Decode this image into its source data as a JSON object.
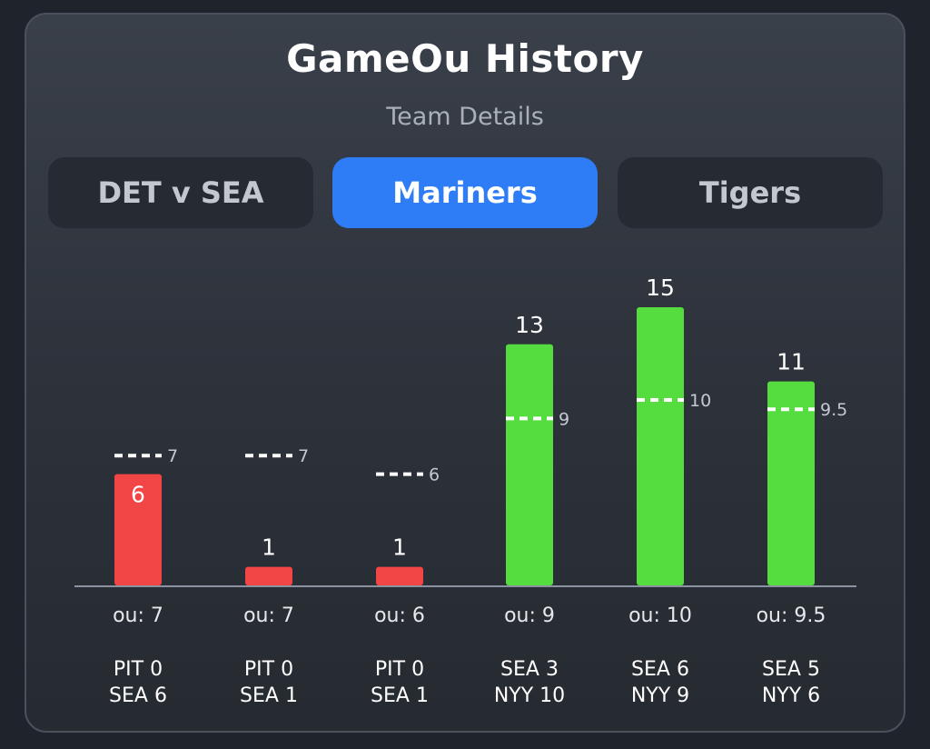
{
  "title": "GameOu History",
  "subtitle": "Team Details",
  "tabs": [
    {
      "label": "DET v SEA",
      "active": false
    },
    {
      "label": "Mariners",
      "active": true
    },
    {
      "label": "Tigers",
      "active": false
    }
  ],
  "colors": {
    "under": "#f24545",
    "over": "#55dd3f",
    "line": "#ffffff",
    "axis": "#8c93a0"
  },
  "chart_data": {
    "type": "bar",
    "y_unit": "total runs",
    "ylim": [
      0,
      17
    ],
    "values": [
      6,
      1,
      1,
      13,
      15,
      11
    ],
    "ou_lines": [
      7,
      7,
      6,
      9,
      10,
      9.5
    ],
    "value_labels": [
      "6",
      "1",
      "1",
      "13",
      "15",
      "11"
    ],
    "line_labels": [
      "7",
      "7",
      "6",
      "9",
      "10",
      "9.5"
    ],
    "ou_labels": [
      "ou: 7",
      "ou: 7",
      "ou: 6",
      "ou: 9",
      "ou: 10",
      "ou: 9.5"
    ],
    "games": [
      [
        "PIT 0",
        "SEA 6"
      ],
      [
        "PIT 0",
        "SEA 1"
      ],
      [
        "PIT 0",
        "SEA 1"
      ],
      [
        "SEA 3",
        "NYY 10"
      ],
      [
        "SEA 6",
        "NYY 9"
      ],
      [
        "SEA 5",
        "NYY 6"
      ]
    ],
    "grid": false,
    "legend": "none"
  }
}
